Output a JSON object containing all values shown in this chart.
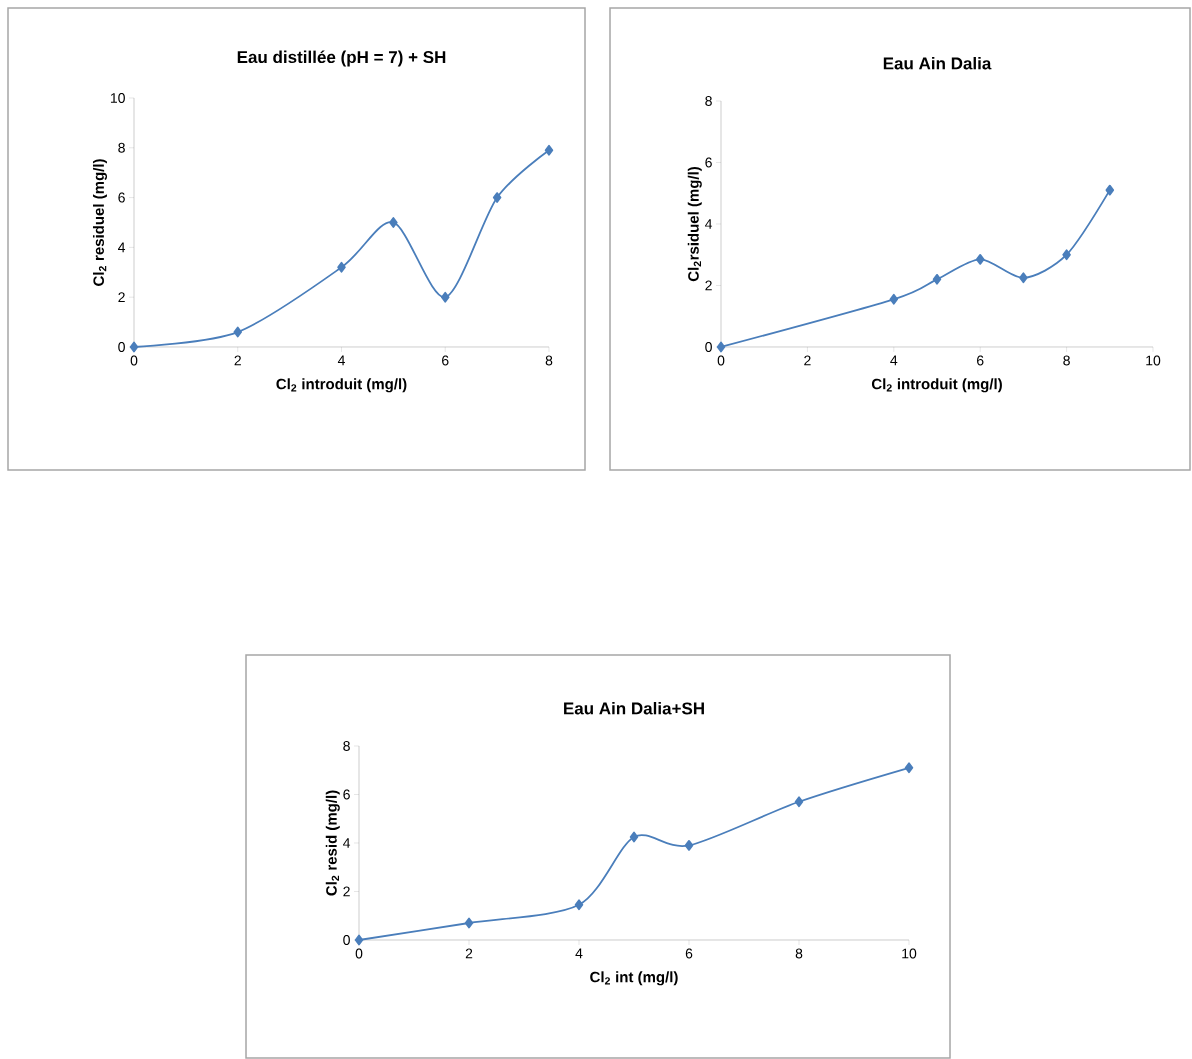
{
  "chart_data": [
    {
      "type": "line",
      "title": "Eau distillée (pH = 7) + SH",
      "xlabel": "Cl$_{2}$ introduit (mg/l)",
      "ylabel": "Cl$_{2}$ residuel (mg/l)",
      "x": [
        0,
        2,
        4,
        5,
        6,
        7,
        8
      ],
      "values": [
        0,
        0.6,
        3.2,
        5.0,
        2.0,
        6.0,
        7.9
      ],
      "color": "#4a7ebb",
      "marker": "diamond",
      "xlim": [
        0,
        8
      ],
      "ylim": [
        0,
        10
      ],
      "xticks": [
        0,
        2,
        4,
        6,
        8
      ],
      "yticks": [
        0,
        2,
        4,
        6,
        8,
        10
      ]
    },
    {
      "type": "line",
      "title": "Eau Ain Dalia",
      "xlabel": "Cl$_{2}$ introduit (mg/l)",
      "ylabel": "Cl$_{2}$rsiduel (mg/l)",
      "x": [
        0,
        4,
        5,
        6,
        7,
        8,
        9
      ],
      "values": [
        0,
        1.55,
        2.2,
        2.85,
        2.25,
        3.0,
        5.1
      ],
      "color": "#4a7ebb",
      "marker": "diamond",
      "xlim": [
        0,
        10
      ],
      "ylim": [
        0,
        8
      ],
      "xticks": [
        0,
        2,
        4,
        6,
        8,
        10
      ],
      "yticks": [
        0,
        2,
        4,
        6,
        8
      ]
    },
    {
      "type": "line",
      "title": "Eau Ain Dalia+SH",
      "xlabel": "Cl$_{2}$ int (mg/l)",
      "ylabel": "Cl$_{2}$ resid (mg/l)",
      "x": [
        0,
        2,
        4,
        5,
        6,
        8,
        10
      ],
      "values": [
        0,
        0.7,
        1.45,
        4.25,
        3.9,
        5.7,
        7.1
      ],
      "color": "#4a7ebb",
      "marker": "diamond",
      "xlim": [
        0,
        10
      ],
      "ylim": [
        0,
        8
      ],
      "xticks": [
        0,
        2,
        4,
        6,
        8,
        10
      ],
      "yticks": [
        0,
        2,
        4,
        6,
        8
      ]
    }
  ]
}
